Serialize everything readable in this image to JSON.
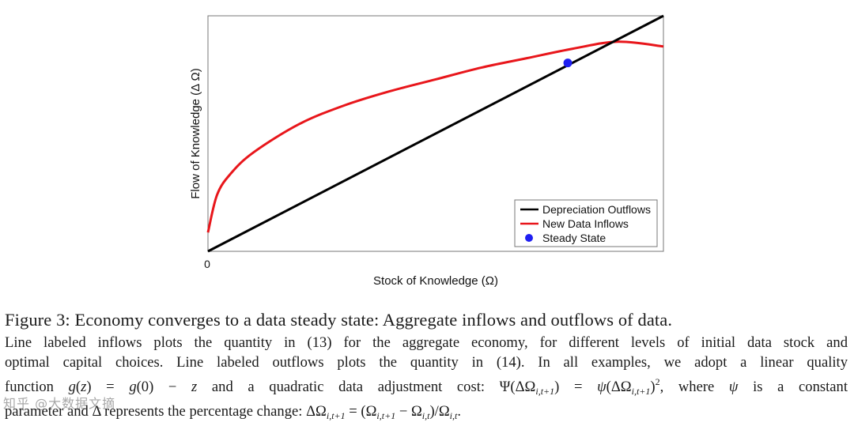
{
  "chart_data": {
    "type": "line",
    "xlabel": "Stock of Knowledge (Ω)",
    "ylabel": "Flow of Knowledge (Δ Ω)",
    "x_tick_labels": [
      "0"
    ],
    "xlim": [
      0,
      1
    ],
    "ylim": [
      0,
      1
    ],
    "grid": false,
    "legend_position": "bottom-right",
    "series": [
      {
        "name": "Depreciation Outflows",
        "color": "#000000",
        "kind": "line",
        "x": [
          0,
          1
        ],
        "y": [
          0,
          1
        ]
      },
      {
        "name": "New Data Inflows",
        "color": "#e8161b",
        "kind": "line",
        "x": [
          0,
          0.02,
          0.05,
          0.1,
          0.2,
          0.3,
          0.4,
          0.5,
          0.6,
          0.7,
          0.8,
          0.9,
          1.0
        ],
        "y": [
          0.08,
          0.24,
          0.33,
          0.42,
          0.54,
          0.62,
          0.68,
          0.73,
          0.78,
          0.82,
          0.86,
          0.89,
          0.87
        ]
      },
      {
        "name": "Steady State",
        "color": "#1f1ff2",
        "kind": "point",
        "x": [
          0.79
        ],
        "y": [
          0.8
        ]
      }
    ]
  },
  "caption": {
    "title": "Figure 3: Economy converges to a data steady state: Aggregate inflows and outflows of data.",
    "line1": "Line labeled inflows plots the quantity in (13) for the aggregate economy, for different levels of initial data stock and",
    "line2": "optimal capital choices. Line labeled outflows plots the quantity in (14). In all examples, we adopt a linear quality",
    "line3_a": "function ",
    "line3_b": " and a quadratic data adjustment cost: ",
    "line3_c": ", where ",
    "line3_d": " is a constant",
    "line4_a": "parameter and ",
    "line4_b": " represents the percentage change: ",
    "line4_c": "."
  },
  "watermark": "知乎 @大数据文摘"
}
